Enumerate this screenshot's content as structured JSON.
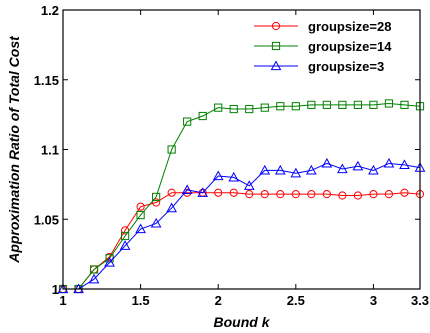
{
  "chart_data": {
    "type": "line",
    "xlabel": "Bound k",
    "ylabel": "Approximation Ratio of Total Cost",
    "xlim": [
      1,
      3.3
    ],
    "ylim": [
      1,
      1.2
    ],
    "x_ticks": [
      1,
      1.5,
      2,
      2.5,
      3,
      3.3
    ],
    "x_tick_labels": [
      "1",
      "1.5",
      "2",
      "2.5",
      "3",
      "3.3"
    ],
    "y_ticks": [
      1,
      1.05,
      1.1,
      1.15,
      1.2
    ],
    "y_tick_labels": [
      "1",
      "1.05",
      "1.1",
      "1.15",
      "1.2"
    ],
    "grid": false,
    "legend_position": "top-right",
    "x": [
      1,
      1.1,
      1.2,
      1.3,
      1.4,
      1.5,
      1.6,
      1.7,
      1.8,
      1.9,
      2,
      2.1,
      2.2,
      2.3,
      2.4,
      2.5,
      2.6,
      2.7,
      2.8,
      2.9,
      3,
      3.1,
      3.2,
      3.3
    ],
    "series": [
      {
        "name": "groupsize=28",
        "color": "#ff0000",
        "marker": "circle",
        "values": [
          1.0,
          1.0,
          1.014,
          1.023,
          1.042,
          1.059,
          1.062,
          1.069,
          1.069,
          1.069,
          1.069,
          1.069,
          1.068,
          1.068,
          1.068,
          1.068,
          1.068,
          1.068,
          1.067,
          1.067,
          1.068,
          1.068,
          1.069,
          1.068
        ]
      },
      {
        "name": "groupsize=14",
        "color": "#008000",
        "marker": "square",
        "values": [
          1.0,
          1.0,
          1.014,
          1.022,
          1.038,
          1.053,
          1.066,
          1.1,
          1.12,
          1.124,
          1.13,
          1.129,
          1.129,
          1.13,
          1.131,
          1.131,
          1.132,
          1.132,
          1.132,
          1.132,
          1.132,
          1.133,
          1.132,
          1.131
        ]
      },
      {
        "name": "groupsize=3",
        "color": "#0000ff",
        "marker": "triangle",
        "values": [
          1.0,
          1.0,
          1.007,
          1.019,
          1.031,
          1.043,
          1.047,
          1.058,
          1.071,
          1.069,
          1.081,
          1.08,
          1.074,
          1.085,
          1.085,
          1.083,
          1.085,
          1.09,
          1.086,
          1.088,
          1.085,
          1.09,
          1.089,
          1.087
        ]
      }
    ]
  }
}
